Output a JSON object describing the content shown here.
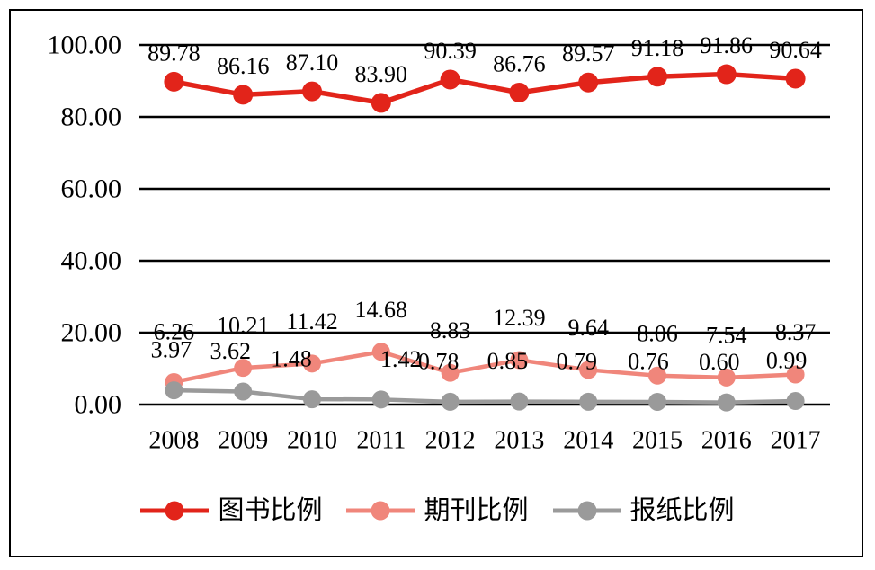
{
  "chart_data": {
    "type": "line",
    "title": "",
    "categories": [
      "2008",
      "2009",
      "2010",
      "2011",
      "2012",
      "2013",
      "2014",
      "2015",
      "2016",
      "2017"
    ],
    "series": [
      {
        "name": "图书比例",
        "color": "#e2241a",
        "values": [
          89.78,
          86.16,
          87.1,
          83.9,
          90.39,
          86.76,
          89.57,
          91.18,
          91.86,
          90.64
        ]
      },
      {
        "name": "期刊比例",
        "color": "#f0867b",
        "values": [
          6.26,
          10.21,
          11.42,
          14.68,
          8.83,
          12.39,
          9.64,
          8.06,
          7.54,
          8.37
        ]
      },
      {
        "name": "报纸比例",
        "color": "#9a9a9a",
        "values": [
          3.97,
          3.62,
          1.48,
          1.42,
          0.78,
          0.85,
          0.79,
          0.76,
          0.6,
          0.99
        ]
      }
    ],
    "y_ticks": [
      0,
      20,
      40,
      60,
      80,
      100
    ],
    "y_tick_labels": [
      "0.00",
      "20.00",
      "40.00",
      "60.00",
      "80.00",
      "100.00"
    ],
    "ylim": [
      0,
      100
    ],
    "grid": true,
    "gridline_color": "#000000",
    "data_labels": true,
    "data_label_format": "0.00",
    "legend_position": "bottom",
    "background": "#ffffff"
  }
}
